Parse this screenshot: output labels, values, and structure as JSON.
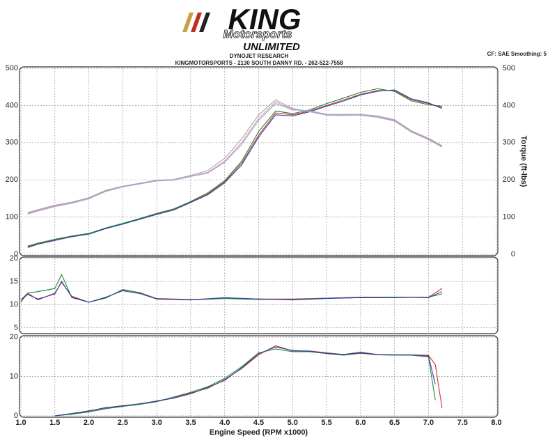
{
  "header": {
    "logo": "KING",
    "logo_script": "Motorsports",
    "logo_sub": "UNLIMITED",
    "company": "DYNOJET RESEARCH",
    "address": "KINGMOTORSPORTS - 2130 SOUTH DANNY RD. - 262-522-7558",
    "settings": "CF: SAE  Smoothing: 5"
  },
  "chart_data": [
    {
      "type": "line",
      "y2label": "Torque (ft-lbs)",
      "grid": true,
      "x": [
        1.1,
        1.25,
        1.5,
        1.75,
        2.0,
        2.25,
        2.5,
        2.75,
        3.0,
        3.25,
        3.5,
        3.75,
        4.0,
        4.25,
        4.5,
        4.75,
        5.0,
        5.25,
        5.5,
        5.75,
        6.0,
        6.25,
        6.5,
        6.75,
        7.0,
        7.2
      ],
      "ylim": [
        0,
        500
      ],
      "yticks": [
        0,
        100,
        200,
        300,
        400,
        500
      ],
      "y2lim": [
        0,
        500
      ],
      "y2ticks": [
        0,
        100,
        200,
        300,
        400,
        500
      ],
      "series": [
        {
          "color": "#d03030",
          "values": [
            20,
            28,
            38,
            48,
            55,
            70,
            82,
            95,
            108,
            120,
            140,
            162,
            195,
            245,
            320,
            380,
            375,
            385,
            400,
            415,
            430,
            440,
            440,
            415,
            405,
            395
          ]
        },
        {
          "color": "#208a30",
          "values": [
            22,
            30,
            40,
            49,
            56,
            71,
            83,
            96,
            110,
            122,
            142,
            165,
            198,
            250,
            330,
            385,
            378,
            388,
            405,
            420,
            435,
            445,
            438,
            412,
            402,
            398
          ]
        },
        {
          "color": "#3040b0",
          "values": [
            18,
            27,
            37,
            47,
            54,
            69,
            81,
            94,
            107,
            119,
            139,
            160,
            192,
            240,
            315,
            375,
            372,
            383,
            398,
            412,
            428,
            438,
            442,
            418,
            407,
            392
          ]
        },
        {
          "color": "#e090a8",
          "axis": "y2",
          "values": [
            110,
            118,
            130,
            138,
            150,
            170,
            182,
            190,
            198,
            200,
            210,
            220,
            250,
            300,
            365,
            410,
            390,
            385,
            375,
            375,
            375,
            370,
            360,
            330,
            310,
            290
          ]
        },
        {
          "color": "#a8a8a8",
          "axis": "y2",
          "values": [
            112,
            120,
            132,
            140,
            152,
            172,
            183,
            191,
            199,
            201,
            212,
            225,
            258,
            310,
            375,
            415,
            392,
            383,
            374,
            373,
            374,
            368,
            358,
            328,
            308,
            288
          ]
        },
        {
          "color": "#a0a8d8",
          "axis": "y2",
          "values": [
            108,
            116,
            128,
            137,
            149,
            169,
            181,
            189,
            197,
            199,
            209,
            218,
            247,
            295,
            360,
            405,
            388,
            386,
            376,
            376,
            376,
            372,
            362,
            332,
            312,
            292
          ]
        }
      ]
    },
    {
      "type": "line",
      "grid": true,
      "x": [
        1.0,
        1.1,
        1.25,
        1.5,
        1.6,
        1.75,
        2.0,
        2.25,
        2.5,
        2.75,
        3.0,
        3.5,
        4.0,
        4.5,
        5.0,
        5.5,
        6.0,
        6.5,
        7.0,
        7.2
      ],
      "ylim": [
        4,
        20
      ],
      "yticks": [
        5,
        10,
        15,
        20
      ],
      "series": [
        {
          "color": "#d03030",
          "values": [
            11,
            12.5,
            11,
            12.5,
            14.8,
            11.8,
            10.5,
            11.5,
            13.2,
            12.6,
            11.3,
            11.1,
            11.4,
            11.2,
            11.2,
            11.4,
            11.6,
            11.6,
            11.6,
            13.5
          ]
        },
        {
          "color": "#208a30",
          "values": [
            10.5,
            12.5,
            12.8,
            13.5,
            16.5,
            11.5,
            10.5,
            11.4,
            13.3,
            12.5,
            11.2,
            11.0,
            11.3,
            11.1,
            11.1,
            11.4,
            11.5,
            11.5,
            11.6,
            12.3
          ]
        },
        {
          "color": "#3040b0",
          "values": [
            11,
            12.2,
            11.2,
            12.3,
            15,
            11.6,
            10.5,
            11.6,
            13,
            12.4,
            11.2,
            11.0,
            11.5,
            11.2,
            11.0,
            11.3,
            11.5,
            11.6,
            11.5,
            12.8
          ]
        }
      ]
    },
    {
      "type": "line",
      "grid": true,
      "xlabel": "Engine Speed (RPM x1000)",
      "x": [
        1.5,
        1.75,
        2.0,
        2.25,
        2.5,
        2.75,
        3.0,
        3.25,
        3.5,
        3.75,
        4.0,
        4.25,
        4.5,
        4.75,
        5.0,
        5.25,
        5.5,
        5.75,
        6.0,
        6.25,
        6.5,
        6.75,
        7.0,
        7.1,
        7.2
      ],
      "xlim": [
        1.0,
        8.0
      ],
      "xticks": [
        {
          "value": 1,
          "label": "1.0"
        },
        1.5,
        {
          "value": 2,
          "label": "2.0"
        },
        2.5,
        {
          "value": 3,
          "label": "3.0"
        },
        3.5,
        {
          "value": 4,
          "label": "4.0"
        },
        4.5,
        {
          "value": 5,
          "label": "5.0"
        },
        5.5,
        {
          "value": 6,
          "label": "6.0"
        },
        6.5,
        {
          "value": 7,
          "label": "7.0"
        },
        7.5,
        {
          "value": 8,
          "label": "8.0"
        }
      ],
      "ylim": [
        0,
        20
      ],
      "yticks": [
        0,
        10,
        20
      ],
      "series": [
        {
          "color": "#d03030",
          "values": [
            0,
            0.5,
            1.3,
            2,
            2.6,
            3,
            3.8,
            4.6,
            5.8,
            7,
            9.2,
            12,
            15.5,
            17.8,
            16.5,
            16.5,
            16,
            15.6,
            16.2,
            15.6,
            15.5,
            15.5,
            15.4,
            13,
            2
          ]
        },
        {
          "color": "#208a30",
          "values": [
            0,
            0.4,
            1,
            1.8,
            2.4,
            2.9,
            3.6,
            4.8,
            6,
            7.4,
            9.5,
            12.5,
            16,
            17,
            16.3,
            16.3,
            15.8,
            15.4,
            15.9,
            15.5,
            15.4,
            15.4,
            15,
            4,
            null
          ]
        },
        {
          "color": "#3040b0",
          "values": [
            0,
            0.6,
            1.2,
            2.1,
            2.5,
            3.1,
            3.7,
            4.5,
            5.6,
            7.2,
            9,
            12.2,
            15.8,
            17.5,
            16.6,
            16.4,
            15.9,
            15.6,
            16,
            15.6,
            15.5,
            15.5,
            15.2,
            8,
            null
          ]
        }
      ]
    }
  ]
}
